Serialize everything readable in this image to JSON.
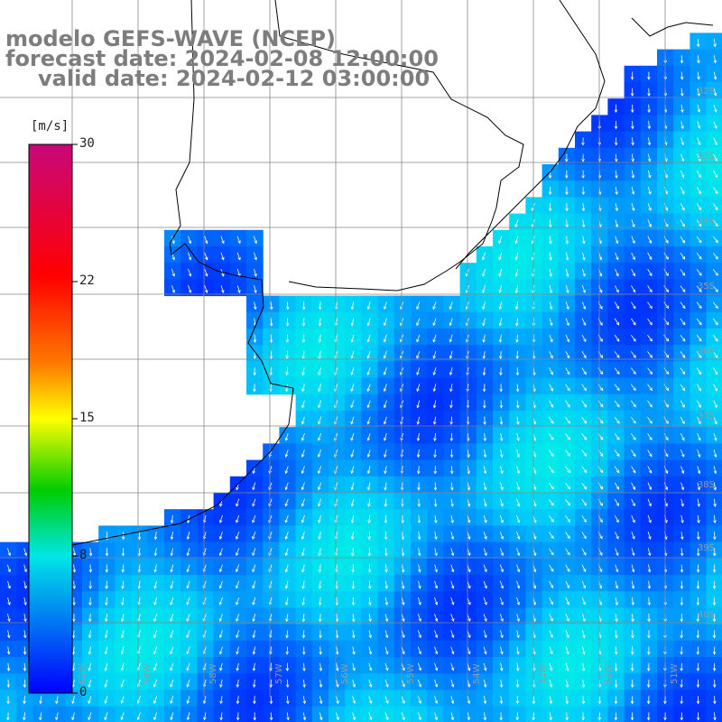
{
  "title": {
    "line1": "modelo GEFS-WAVE (NCEP)",
    "line2": "forecast date: 2024-02-08 12:00:00",
    "line3": "valid date: 2024-02-12 03:00:00"
  },
  "colorbar": {
    "unit": "[m/s]",
    "ticks": [
      "30",
      "22",
      "15",
      "8",
      "0"
    ],
    "colors": [
      "#c8087a",
      "#ff0000",
      "#ff7a00",
      "#ffff00",
      "#00cc00",
      "#00e0e0",
      "#0000ff"
    ]
  },
  "grid_labels": {
    "lat": [
      "32S",
      "33S",
      "34S",
      "35S",
      "36S",
      "37S",
      "38S",
      "39S",
      "40S"
    ],
    "lon": [
      "60W",
      "59W",
      "58W",
      "57W",
      "56W",
      "55W",
      "54W",
      "53W",
      "52W",
      "51W",
      "50W"
    ]
  },
  "colors": {
    "land": "#ffffff",
    "coast": "#000000",
    "grid": "#888888",
    "arrow": "#ffffff",
    "title_text": "#7d7d7d"
  }
}
